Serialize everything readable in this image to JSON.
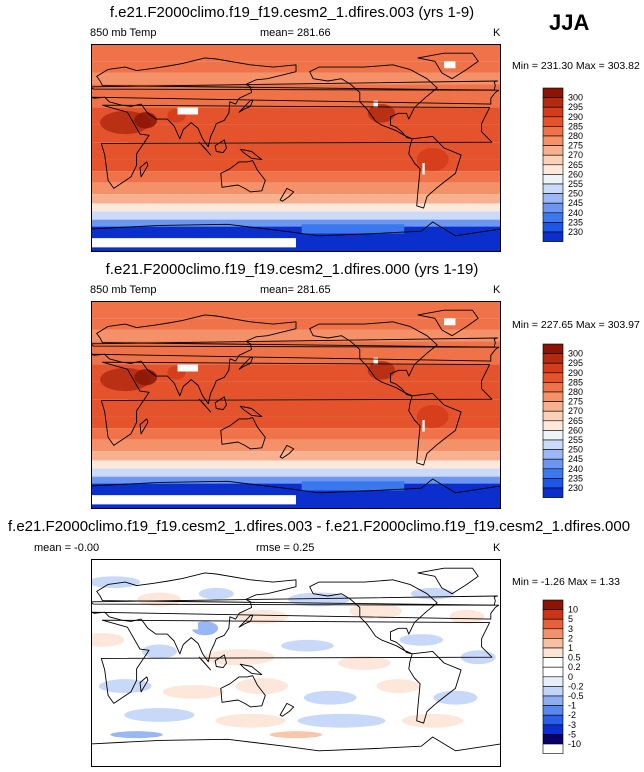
{
  "season": "JJA",
  "palette_abs": [
    "#08006b",
    "#0a2fcc",
    "#1c56e6",
    "#3b78ee",
    "#6b96f2",
    "#9db8f5",
    "#cbdaf8",
    "#eef2fb",
    "#fde8dc",
    "#fbd0b8",
    "#f8b08e",
    "#f49168",
    "#f07248",
    "#e4532c",
    "#d43b1a",
    "#b32a10",
    "#8a1506"
  ],
  "palette_diff": [
    "#08006b",
    "#0a2fcc",
    "#2a5fe8",
    "#5a88ef",
    "#8eaef4",
    "#c2d4f8",
    "#e6eefb",
    "#ffffff",
    "#ffffff",
    "#fde4d6",
    "#f8c0a3",
    "#f2926b",
    "#e6603c",
    "#cc3418",
    "#8a1506"
  ],
  "panels": [
    {
      "title": "f.e21.F2000climo.f19_f19.cesm2_1.dfires.003 (yrs 1-9)",
      "left_label": "850 mb Temp",
      "center_label": "mean= 281.66",
      "units": "K",
      "minmax": "Min = 231.30 Max = 303.82"
    },
    {
      "title": "f.e21.F2000climo.f19_f19.cesm2_1.dfires.000 (yrs 1-19)",
      "left_label": "850 mb Temp",
      "center_label": "mean= 281.65",
      "units": "K",
      "minmax": "Min = 227.65 Max = 303.97"
    },
    {
      "title": "f.e21.F2000climo.f19_f19.cesm2_1.dfires.003 - f.e21.F2000climo.f19_f19.cesm2_1.dfires.000",
      "left_label": "mean =  -0.00",
      "center_label": "rmse =   0.25",
      "units": "K",
      "minmax": "Min =  -1.26 Max =   1.33"
    }
  ],
  "chart_data": [
    {
      "type": "heatmap",
      "title": "f.e21.F2000climo.f19_f19.cesm2_1.dfires.003 (yrs 1-9)",
      "variable": "850 mb Temp",
      "units": "K",
      "mean": 281.66,
      "min": 231.3,
      "max": 303.82,
      "colorbar_levels": [
        300,
        295,
        290,
        285,
        280,
        275,
        270,
        265,
        260,
        255,
        250,
        245,
        240,
        235,
        230
      ]
    },
    {
      "type": "heatmap",
      "title": "f.e21.F2000climo.f19_f19.cesm2_1.dfires.000 (yrs 1-19)",
      "variable": "850 mb Temp",
      "units": "K",
      "mean": 281.65,
      "min": 227.65,
      "max": 303.97,
      "colorbar_levels": [
        300,
        295,
        290,
        285,
        280,
        275,
        270,
        265,
        260,
        255,
        250,
        245,
        240,
        235,
        230
      ]
    },
    {
      "type": "heatmap",
      "title": "f.e21.F2000climo.f19_f19.cesm2_1.dfires.003 - f.e21.F2000climo.f19_f19.cesm2_1.dfires.000",
      "units": "K",
      "mean": -0.0,
      "rmse": 0.25,
      "min": -1.26,
      "max": 1.33,
      "colorbar_levels": [
        "10",
        "5",
        "3",
        "2",
        "1",
        "0.5",
        "0.2",
        "0",
        "-0.2",
        "-0.5",
        "-1",
        "-2",
        "-3",
        "-5",
        "-10"
      ]
    }
  ]
}
